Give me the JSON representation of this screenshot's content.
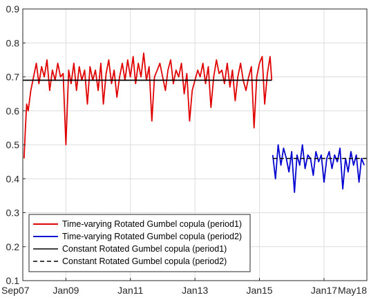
{
  "chart_data": {
    "type": "line",
    "title": "",
    "xlabel": "",
    "ylabel": "",
    "x_range": [
      "2007-09-01",
      "2018-05-01"
    ],
    "ylim": [
      0.1,
      0.9
    ],
    "grid": true,
    "legend_position": "bottom-left",
    "x_ticks": [
      {
        "label": "Sep07",
        "date": "2007-09-01"
      },
      {
        "label": "Jan09",
        "date": "2009-01-01"
      },
      {
        "label": "Jan11",
        "date": "2011-01-01"
      },
      {
        "label": "Jan13",
        "date": "2013-01-01"
      },
      {
        "label": "Jan15",
        "date": "2015-01-01"
      },
      {
        "label": "Jan17",
        "date": "2017-01-01"
      },
      {
        "label": "May18",
        "date": "2018-05-01"
      }
    ],
    "y_ticks": [
      "0.1",
      "0.2",
      "0.3",
      "0.4",
      "0.5",
      "0.6",
      "0.7",
      "0.8",
      "0.9"
    ],
    "series": [
      {
        "name": "Time-varying Rotated Gumbel copula (period1)",
        "color": "#e00000",
        "style": "solid",
        "x": [
          "2007-09-15",
          "2007-10-01",
          "2007-10-15",
          "2007-11-01",
          "2007-12-01",
          "2008-01-01",
          "2008-02-01",
          "2008-03-01",
          "2008-04-01",
          "2008-05-01",
          "2008-06-01",
          "2008-07-01",
          "2008-08-01",
          "2008-09-01",
          "2008-10-01",
          "2008-11-01",
          "2008-12-01",
          "2009-01-01",
          "2009-02-01",
          "2009-03-01",
          "2009-04-01",
          "2009-05-01",
          "2009-06-01",
          "2009-07-01",
          "2009-08-01",
          "2009-09-01",
          "2009-10-01",
          "2009-11-01",
          "2009-12-01",
          "2010-01-01",
          "2010-02-01",
          "2010-03-01",
          "2010-04-01",
          "2010-05-01",
          "2010-06-01",
          "2010-07-01",
          "2010-08-01",
          "2010-09-01",
          "2010-10-01",
          "2010-11-01",
          "2010-12-01",
          "2011-01-01",
          "2011-02-01",
          "2011-03-01",
          "2011-04-01",
          "2011-05-01",
          "2011-06-01",
          "2011-07-01",
          "2011-08-01",
          "2011-09-01",
          "2011-10-01",
          "2011-11-01",
          "2011-12-01",
          "2012-01-01",
          "2012-02-01",
          "2012-03-01",
          "2012-04-01",
          "2012-05-01",
          "2012-06-01",
          "2012-07-01",
          "2012-08-01",
          "2012-09-01",
          "2012-10-01",
          "2012-11-01",
          "2012-12-01",
          "2013-01-01",
          "2013-02-01",
          "2013-03-01",
          "2013-04-01",
          "2013-05-01",
          "2013-06-01",
          "2013-07-01",
          "2013-08-01",
          "2013-09-01",
          "2013-10-01",
          "2013-11-01",
          "2013-12-01",
          "2014-01-01",
          "2014-02-01",
          "2014-03-01",
          "2014-04-01",
          "2014-05-01",
          "2014-06-01",
          "2014-07-01",
          "2014-08-01",
          "2014-09-01",
          "2014-10-01",
          "2014-11-01",
          "2014-12-01",
          "2015-01-01",
          "2015-02-01",
          "2015-03-01",
          "2015-04-01",
          "2015-05-01",
          "2015-05-20"
        ],
        "y": [
          0.46,
          0.55,
          0.62,
          0.6,
          0.66,
          0.7,
          0.74,
          0.68,
          0.73,
          0.7,
          0.75,
          0.66,
          0.72,
          0.69,
          0.74,
          0.7,
          0.71,
          0.5,
          0.72,
          0.68,
          0.74,
          0.66,
          0.73,
          0.69,
          0.72,
          0.62,
          0.73,
          0.69,
          0.72,
          0.66,
          0.74,
          0.62,
          0.71,
          0.75,
          0.68,
          0.72,
          0.64,
          0.7,
          0.74,
          0.69,
          0.75,
          0.7,
          0.76,
          0.68,
          0.74,
          0.7,
          0.77,
          0.69,
          0.73,
          0.57,
          0.7,
          0.72,
          0.74,
          0.7,
          0.66,
          0.72,
          0.75,
          0.68,
          0.72,
          0.7,
          0.74,
          0.65,
          0.71,
          0.57,
          0.66,
          0.69,
          0.72,
          0.7,
          0.74,
          0.68,
          0.73,
          0.61,
          0.7,
          0.75,
          0.71,
          0.72,
          0.68,
          0.74,
          0.67,
          0.72,
          0.63,
          0.7,
          0.74,
          0.69,
          0.66,
          0.7,
          0.73,
          0.55,
          0.7,
          0.74,
          0.76,
          0.62,
          0.71,
          0.76,
          0.69
        ]
      },
      {
        "name": "Time-varying Rotated Gumbel copula (period2)",
        "color": "#0000d0",
        "style": "solid",
        "x": [
          "2015-06-01",
          "2015-07-01",
          "2015-08-01",
          "2015-09-01",
          "2015-10-01",
          "2015-11-01",
          "2015-12-01",
          "2016-01-01",
          "2016-02-01",
          "2016-03-01",
          "2016-04-01",
          "2016-05-01",
          "2016-06-01",
          "2016-07-01",
          "2016-08-01",
          "2016-09-01",
          "2016-10-01",
          "2016-11-01",
          "2016-12-01",
          "2017-01-01",
          "2017-02-01",
          "2017-03-01",
          "2017-04-01",
          "2017-05-01",
          "2017-06-01",
          "2017-07-01",
          "2017-08-01",
          "2017-09-01",
          "2017-10-01",
          "2017-11-01",
          "2017-12-01",
          "2018-01-01",
          "2018-02-01",
          "2018-03-01",
          "2018-04-01"
        ],
        "y": [
          0.47,
          0.4,
          0.5,
          0.44,
          0.49,
          0.46,
          0.42,
          0.48,
          0.36,
          0.47,
          0.44,
          0.5,
          0.43,
          0.47,
          0.46,
          0.41,
          0.48,
          0.45,
          0.47,
          0.39,
          0.46,
          0.48,
          0.43,
          0.47,
          0.45,
          0.49,
          0.37,
          0.46,
          0.42,
          0.48,
          0.44,
          0.47,
          0.39,
          0.46,
          0.44
        ]
      },
      {
        "name": "Constant Rotated Gumbel copula (period1)",
        "color": "#000000",
        "style": "solid",
        "x": [
          "2007-09-01",
          "2015-05-20"
        ],
        "y": [
          0.69,
          0.69
        ]
      },
      {
        "name": "Constant Rotated Gumbel copula (period2)",
        "color": "#000000",
        "style": "dashed",
        "x": [
          "2015-06-01",
          "2018-05-01"
        ],
        "y": [
          0.46,
          0.46
        ]
      }
    ]
  }
}
